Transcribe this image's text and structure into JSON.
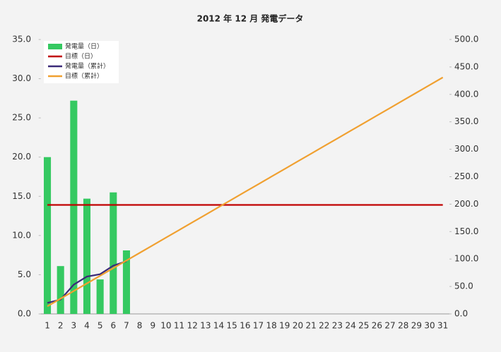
{
  "chart_data": {
    "type": "bar_line",
    "title": "2012 年 12 月 発電データ",
    "categories": [
      "1",
      "2",
      "3",
      "4",
      "5",
      "6",
      "7",
      "8",
      "9",
      "10",
      "11",
      "12",
      "13",
      "14",
      "15",
      "16",
      "17",
      "18",
      "19",
      "20",
      "21",
      "22",
      "23",
      "24",
      "25",
      "26",
      "27",
      "28",
      "29",
      "30",
      "31"
    ],
    "series": [
      {
        "name": "発電量（日）",
        "kind": "bar",
        "color": "#35c961",
        "values": [
          20.0,
          6.1,
          27.2,
          14.7,
          4.4,
          15.5,
          8.1,
          null,
          null,
          null,
          null,
          null,
          null,
          null,
          null,
          null,
          null,
          null,
          null,
          null,
          null,
          null,
          null,
          null,
          null,
          null,
          null,
          null,
          null,
          null,
          null
        ]
      },
      {
        "name": "目標（日）",
        "kind": "line",
        "color": "#c00000",
        "values": [
          13.9,
          13.9,
          13.9,
          13.9,
          13.9,
          13.9,
          13.9,
          13.9,
          13.9,
          13.9,
          13.9,
          13.9,
          13.9,
          13.9,
          13.9,
          13.9,
          13.9,
          13.9,
          13.9,
          13.9,
          13.9,
          13.9,
          13.9,
          13.9,
          13.9,
          13.9,
          13.9,
          13.9,
          13.9,
          13.9,
          13.9
        ]
      },
      {
        "name": "発電量（累計）",
        "kind": "line",
        "axis": "y2",
        "color": "#3a2a78",
        "values": [
          20.0,
          26.1,
          53.3,
          68.0,
          72.4,
          87.9,
          96.0,
          null,
          null,
          null,
          null,
          null,
          null,
          null,
          null,
          null,
          null,
          null,
          null,
          null,
          null,
          null,
          null,
          null,
          null,
          null,
          null,
          null,
          null,
          null,
          null
        ]
      },
      {
        "name": "目標（累計）",
        "kind": "line",
        "axis": "y2",
        "color": "#f0a030",
        "values": [
          13.9,
          27.8,
          41.7,
          55.6,
          69.5,
          83.4,
          97.3,
          111.2,
          125.1,
          139.0,
          152.9,
          166.8,
          180.7,
          194.6,
          208.5,
          222.4,
          236.3,
          250.2,
          264.1,
          278.0,
          291.9,
          305.8,
          319.7,
          333.6,
          347.5,
          361.4,
          375.3,
          389.2,
          403.1,
          417.0,
          430.9
        ]
      }
    ],
    "ylim": [
      0,
      35
    ],
    "yticks": [
      {
        "value": 0,
        "label": "0.0"
      },
      {
        "value": 5,
        "label": "5.0"
      },
      {
        "value": 10,
        "label": "10.0"
      },
      {
        "value": 15,
        "label": "15.0"
      },
      {
        "value": 20,
        "label": "20.0"
      },
      {
        "value": 25,
        "label": "25.0"
      },
      {
        "value": 30,
        "label": "30.0"
      },
      {
        "value": 35,
        "label": "35.0"
      }
    ],
    "y2lim": [
      0,
      500
    ],
    "y2ticks": [
      {
        "value": 0,
        "label": "0.0"
      },
      {
        "value": 50,
        "label": "50.0"
      },
      {
        "value": 100,
        "label": "100.0"
      },
      {
        "value": 150,
        "label": "150.0"
      },
      {
        "value": 200,
        "label": "200.0"
      },
      {
        "value": 250,
        "label": "250.0"
      },
      {
        "value": 300,
        "label": "300.0"
      },
      {
        "value": 350,
        "label": "350.0"
      },
      {
        "value": 400,
        "label": "400.0"
      },
      {
        "value": 450,
        "label": "450.0"
      },
      {
        "value": 500,
        "label": "500.0"
      }
    ],
    "legend": "top-left"
  }
}
